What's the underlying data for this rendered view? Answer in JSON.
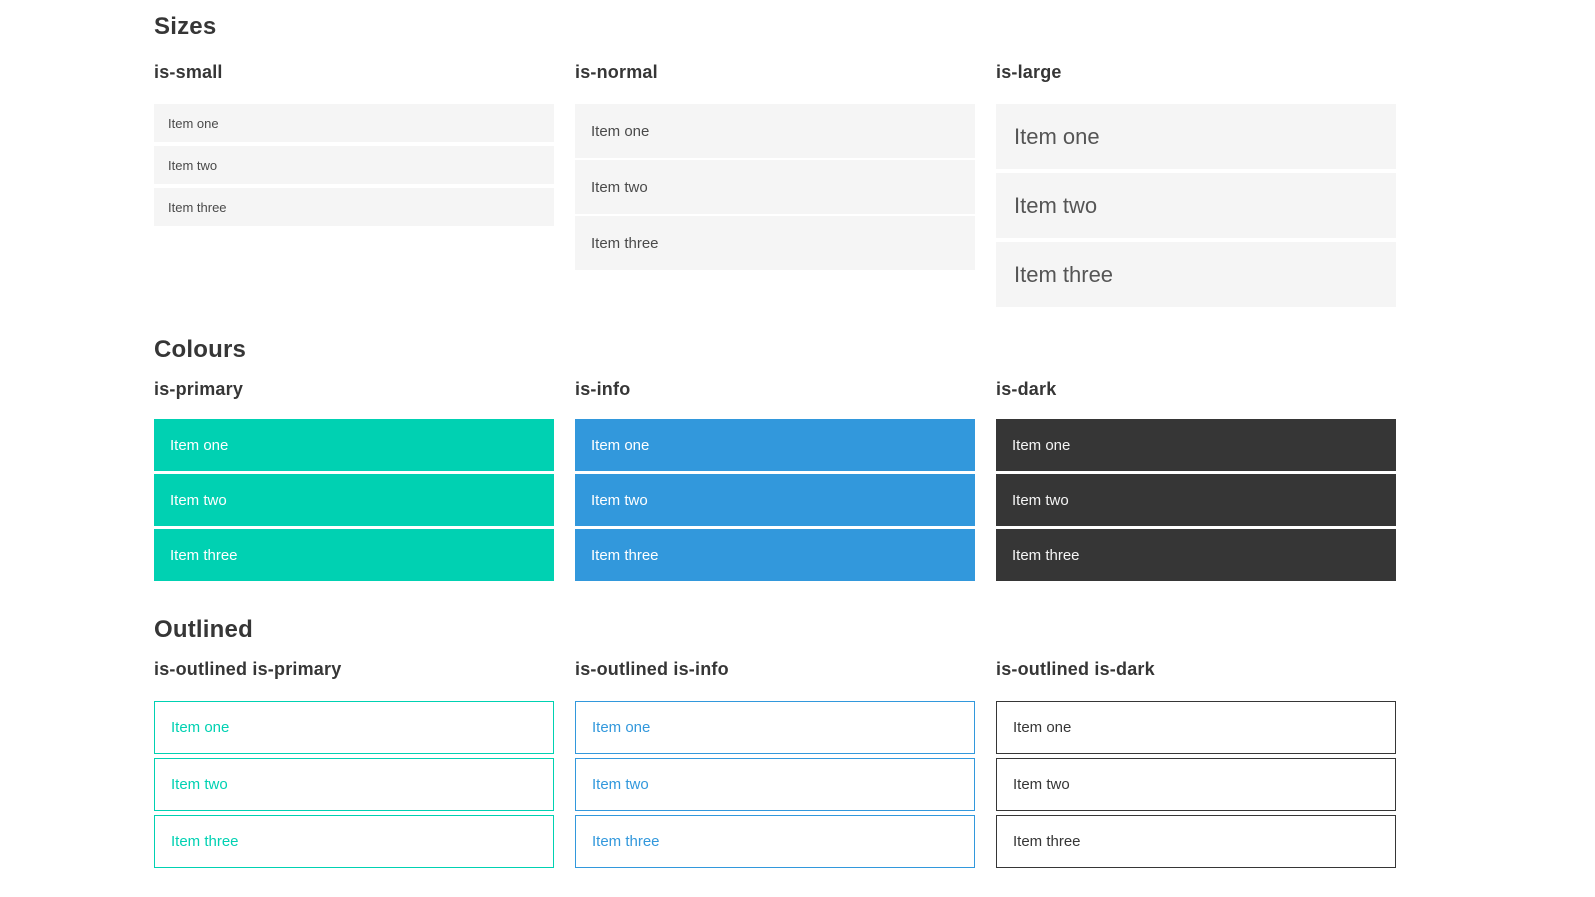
{
  "colors": {
    "primary": "#00d1b2",
    "info": "#3298dc",
    "dark": "#363636",
    "heading": "#363636",
    "item-bg": "#f5f5f5",
    "item-text": "#4a4a4a",
    "dark-item-text": "#f5f5f5",
    "white": "#ffffff"
  },
  "sections": {
    "sizes": {
      "title": "Sizes",
      "groups": [
        {
          "label": "is-small",
          "items": [
            "Item one",
            "Item two",
            "Item three"
          ]
        },
        {
          "label": "is-normal",
          "items": [
            "Item one",
            "Item two",
            "Item three"
          ]
        },
        {
          "label": "is-large",
          "items": [
            "Item one",
            "Item two",
            "Item three"
          ]
        }
      ]
    },
    "colours": {
      "title": "Colours",
      "groups": [
        {
          "label": "is-primary",
          "items": [
            "Item one",
            "Item two",
            "Item three"
          ]
        },
        {
          "label": "is-info",
          "items": [
            "Item one",
            "Item two",
            "Item three"
          ]
        },
        {
          "label": "is-dark",
          "items": [
            "Item one",
            "Item two",
            "Item three"
          ]
        }
      ]
    },
    "outlined": {
      "title": "Outlined",
      "groups": [
        {
          "label": "is-outlined is-primary",
          "items": [
            "Item one",
            "Item two",
            "Item three"
          ]
        },
        {
          "label": "is-outlined is-info",
          "items": [
            "Item one",
            "Item two",
            "Item three"
          ]
        },
        {
          "label": "is-outlined is-dark",
          "items": [
            "Item one",
            "Item two",
            "Item three"
          ]
        }
      ]
    }
  }
}
